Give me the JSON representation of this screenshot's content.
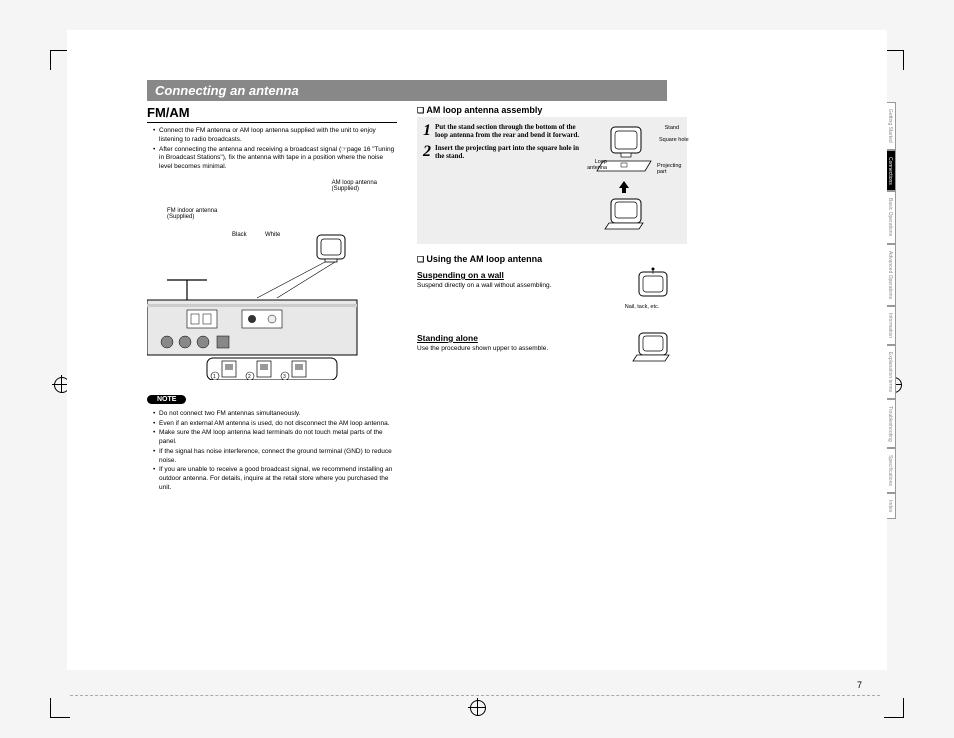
{
  "print_marks": {
    "bw_bar_grays": [
      "#000000",
      "#1a1a1a",
      "#333333",
      "#4d4d4d",
      "#666666",
      "#808080",
      "#999999",
      "#b3b3b3",
      "#cccccc",
      "#e6e6e6",
      "#ffffff"
    ],
    "color_bar": [
      "#00aeef",
      "#ec008c",
      "#fff200",
      "#000000",
      "#ed1c24",
      "#00a651",
      "#2e3192",
      "#ffffff",
      "#f7941d",
      "#92278f",
      "#a6ce39",
      "#8dc63f"
    ]
  },
  "language": "ENGLISH",
  "side_tabs": [
    {
      "label": "Getting Started",
      "active": false
    },
    {
      "label": "Connections",
      "active": true
    },
    {
      "label": "Basic Operations",
      "active": false
    },
    {
      "label": "Advanced Operations",
      "active": false
    },
    {
      "label": "Information",
      "active": false
    },
    {
      "label": "Explanation terms",
      "active": false
    },
    {
      "label": "Troubleshooting",
      "active": false
    },
    {
      "label": "Specifications",
      "active": false
    },
    {
      "label": "Index",
      "active": false
    }
  ],
  "header": "Connecting an antenna",
  "fm_am": {
    "title": "FM/AM",
    "bullets": [
      "Connect the FM antenna or AM loop antenna supplied with the unit to enjoy listening to radio broadcasts.",
      "After connecting the antenna and receiving a broadcast signal (☞page 16 \"Tuning in Broadcast Stations\"), fix the antenna with tape in a position where the noise level becomes minimal."
    ],
    "diagram_labels": {
      "am_loop": "AM loop antenna\n(Supplied)",
      "fm_indoor": "FM indoor antenna\n(Supplied)",
      "black": "Black",
      "white": "White"
    },
    "note_label": "NOTE",
    "notes": [
      "Do not connect two FM antennas simultaneously.",
      "Even if an external AM antenna is used, do not disconnect the AM loop antenna.",
      "Make sure the AM loop antenna lead terminals do not touch metal parts of the panel.",
      "If the signal has noise interference, connect the ground terminal (GND) to reduce noise.",
      "If you are unable to receive a good broadcast signal, we recommend installing an outdoor antenna. For details, inquire at the retail store where you purchased the unit."
    ]
  },
  "assembly": {
    "title": "AM loop antenna assembly",
    "steps": [
      {
        "num": "1",
        "text": "Put the stand section through the bottom of the loop antenna from the rear and bend it forward."
      },
      {
        "num": "2",
        "text": "Insert the projecting part into the square hole in the stand."
      }
    ],
    "labels": {
      "stand": "Stand",
      "square_hole": "Square hole",
      "loop_antenna": "Loop antenna",
      "projecting": "Projecting part"
    }
  },
  "using": {
    "title": "Using the AM loop antenna",
    "suspending": {
      "head": "Suspending on a wall",
      "text": "Suspend directly on a wall without assembling.",
      "label": "Nail, tack, etc."
    },
    "standing": {
      "head": "Standing alone",
      "text": "Use the procedure shown upper to assemble."
    }
  },
  "page_number": "7"
}
